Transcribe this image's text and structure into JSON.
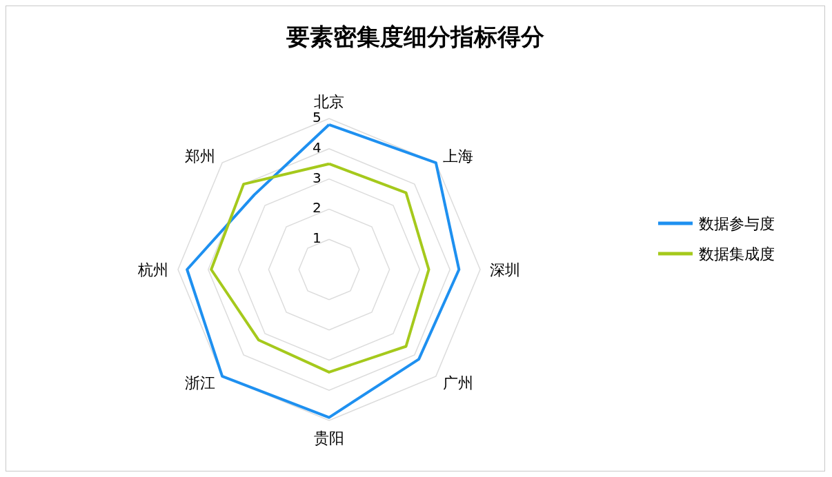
{
  "chart_data": {
    "type": "radar",
    "title": "要素密集度细分指标得分",
    "categories": [
      "北京",
      "上海",
      "深圳",
      "广州",
      "贵阳",
      "浙江",
      "杭州",
      "郑州"
    ],
    "series": [
      {
        "name": "数据参与度",
        "color": "#1e90f0",
        "values": [
          4.8,
          5.0,
          4.3,
          4.2,
          4.9,
          5.0,
          4.7,
          3.5
        ]
      },
      {
        "name": "数据集成度",
        "color": "#a5c91c",
        "values": [
          3.5,
          3.6,
          3.3,
          3.6,
          3.4,
          3.3,
          3.9,
          4.0
        ]
      }
    ],
    "ylim": [
      0,
      5
    ],
    "yticks": [
      1,
      2,
      3,
      4,
      5
    ],
    "grid": true,
    "legend": "right",
    "marker": "none",
    "line_style": "solid"
  }
}
